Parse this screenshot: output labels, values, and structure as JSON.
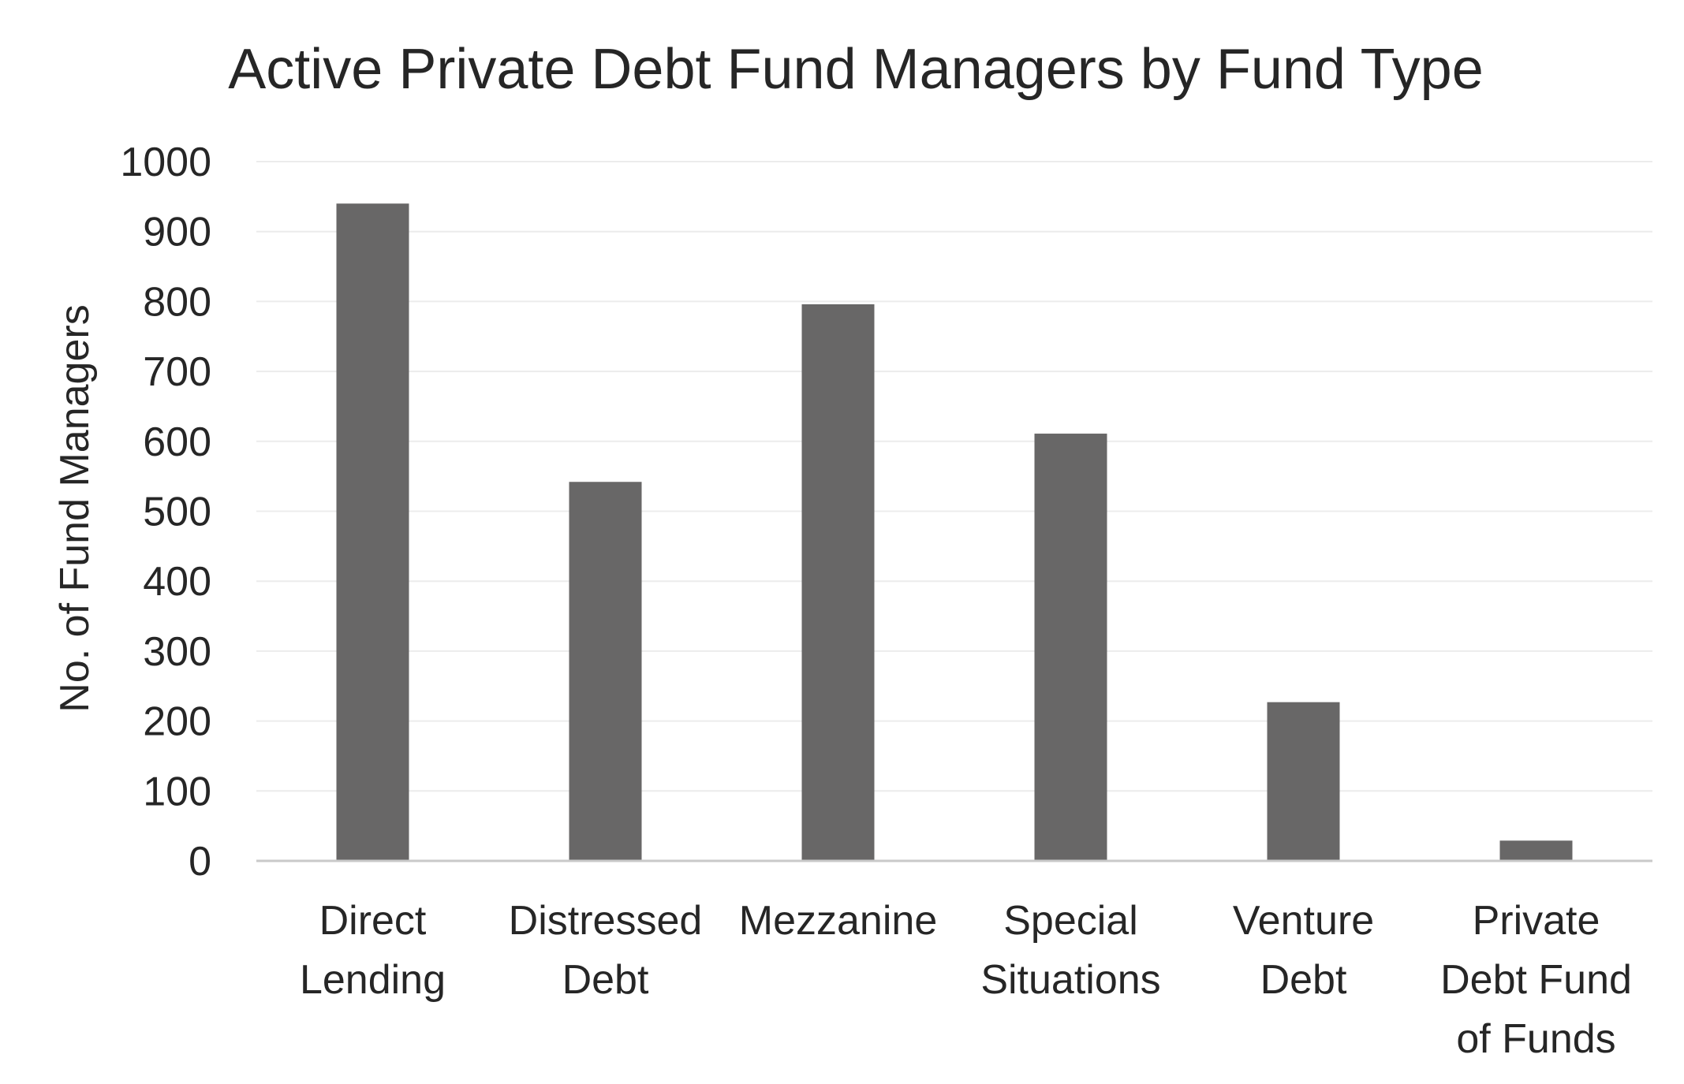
{
  "chart_data": {
    "type": "bar",
    "title": "Active Private Debt Fund Managers by Fund Type",
    "xlabel": "",
    "ylabel": "No. of Fund Managers",
    "ylim": [
      0,
      1000
    ],
    "yticks": [
      "0",
      "100",
      "200",
      "300",
      "400",
      "500",
      "600",
      "700",
      "800",
      "900",
      "1000"
    ],
    "categories": [
      "Direct Lending",
      "Distressed Debt",
      "Mezzanine",
      "Special Situations",
      "Venture Debt",
      "Private Debt Fund of Funds"
    ],
    "category_label_lines": [
      [
        "Direct",
        "Lending"
      ],
      [
        "Distressed",
        "Debt"
      ],
      [
        "Mezzanine"
      ],
      [
        "Special",
        "Situations"
      ],
      [
        "Venture",
        "Debt"
      ],
      [
        "Private",
        "Debt Fund",
        "of Funds"
      ]
    ],
    "values": [
      940,
      542,
      796,
      611,
      227,
      29
    ],
    "grid": true,
    "legend": "none",
    "colors": {
      "bar": "#686767",
      "grid": "#ececec",
      "axis": "#c9c9c9",
      "text": "#262626"
    }
  }
}
